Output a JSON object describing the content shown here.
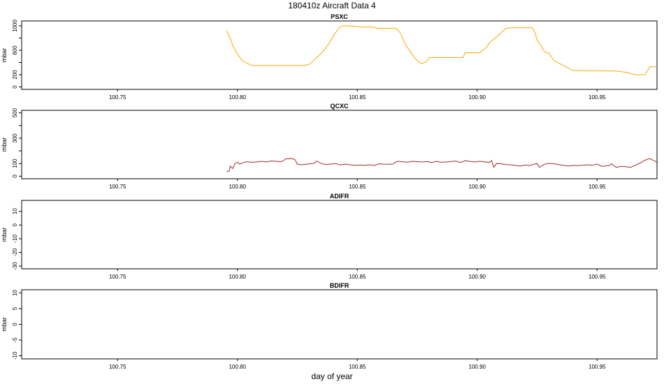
{
  "title": "180410z   Aircraft Data 4",
  "xlabel": "day of year",
  "colors": {
    "psxc": "#ffa500",
    "qcxc": "#a52a2a",
    "axis": "#000000"
  },
  "chart_data": [
    {
      "type": "line",
      "title": "PSXC",
      "ylabel": "mbar",
      "xlim": [
        100.71,
        100.975
      ],
      "ylim": [
        -40,
        1080
      ],
      "xticks": [
        "100.75",
        "100.80",
        "100.85",
        "100.90",
        "100.95"
      ],
      "yticks": [
        0,
        200,
        600,
        1000
      ],
      "ytick_labels": [
        "0",
        "200",
        "600",
        "1000"
      ],
      "series": [
        {
          "color": "#ffa500",
          "x": [
            100.7955,
            100.797,
            100.798,
            100.8,
            100.802,
            100.804,
            100.806,
            100.815,
            100.828,
            100.83,
            100.835,
            100.838,
            100.84,
            100.842,
            100.8435,
            100.845,
            100.85,
            100.851,
            100.857,
            100.858,
            100.866,
            100.868,
            100.87,
            100.872,
            100.874,
            100.876,
            100.877,
            100.879,
            100.88,
            100.894,
            100.895,
            100.901,
            100.902,
            100.904,
            100.905,
            100.907,
            100.912,
            100.915,
            100.923,
            100.924,
            100.925,
            100.927,
            100.928,
            100.929,
            100.93,
            100.932,
            100.94,
            100.958,
            100.962,
            100.966,
            100.97,
            100.972,
            100.975
          ],
          "y": [
            920,
            800,
            680,
            540,
            430,
            390,
            350,
            350,
            350,
            370,
            550,
            700,
            830,
            950,
            1000,
            1000,
            990,
            980,
            980,
            960,
            960,
            880,
            700,
            580,
            470,
            400,
            380,
            420,
            480,
            480,
            560,
            560,
            590,
            650,
            720,
            780,
            960,
            970,
            970,
            900,
            770,
            650,
            580,
            560,
            550,
            430,
            270,
            260,
            240,
            200,
            200,
            330,
            330
          ]
        }
      ]
    },
    {
      "type": "line",
      "title": "QCXC",
      "ylabel": "mbar",
      "xlim": [
        100.71,
        100.975
      ],
      "ylim": [
        -20,
        520
      ],
      "xticks": [
        "100.75",
        "100.80",
        "100.85",
        "100.90",
        "100.95"
      ],
      "yticks": [
        0,
        100,
        300,
        500
      ],
      "ytick_labels": [
        "0",
        "100",
        "300",
        "500"
      ],
      "series": [
        {
          "color": "#a52a2a",
          "x": [
            100.7955,
            100.7965,
            100.797,
            100.798,
            100.799,
            100.8,
            100.801,
            100.802,
            100.804,
            100.806,
            100.808,
            100.81,
            100.812,
            100.814,
            100.816,
            100.818,
            100.819,
            100.82,
            100.822,
            100.823,
            100.824,
            100.825,
            100.827,
            100.828,
            100.83,
            100.832,
            100.833,
            100.835,
            100.837,
            100.839,
            100.841,
            100.843,
            100.845,
            100.847,
            100.849,
            100.851,
            100.853,
            100.855,
            100.857,
            100.859,
            100.861,
            100.863,
            100.865,
            100.866,
            100.867,
            100.869,
            100.871,
            100.873,
            100.875,
            100.877,
            100.879,
            100.881,
            100.883,
            100.885,
            100.887,
            100.889,
            100.891,
            100.893,
            100.895,
            100.897,
            100.899,
            100.901,
            100.903,
            100.905,
            100.906,
            100.907,
            100.908,
            100.91,
            100.912,
            100.914,
            100.916,
            100.918,
            100.92,
            100.922,
            100.924,
            100.925,
            100.926,
            100.928,
            100.93,
            100.932,
            100.934,
            100.936,
            100.938,
            100.94,
            100.942,
            100.944,
            100.946,
            100.948,
            100.95,
            100.952,
            100.954,
            100.955,
            100.956,
            100.958,
            100.96,
            100.962,
            100.964,
            100.966,
            100.968,
            100.97,
            100.972,
            100.973,
            100.975
          ],
          "y": [
            35,
            40,
            80,
            60,
            100,
            110,
            95,
            105,
            115,
            110,
            112,
            118,
            112,
            120,
            118,
            115,
            120,
            135,
            140,
            138,
            130,
            95,
            90,
            93,
            98,
            102,
            120,
            100,
            92,
            96,
            100,
            89,
            95,
            90,
            85,
            88,
            85,
            90,
            84,
            98,
            95,
            94,
            96,
            112,
            118,
            114,
            110,
            118,
            115,
            112,
            116,
            108,
            118,
            110,
            112,
            115,
            120,
            108,
            122,
            116,
            112,
            118,
            114,
            108,
            123,
            70,
            100,
            98,
            92,
            90,
            85,
            80,
            88,
            84,
            96,
            100,
            70,
            94,
            102,
            98,
            92,
            86,
            80,
            85,
            84,
            86,
            90,
            86,
            96,
            78,
            82,
            84,
            98,
            70,
            78,
            75,
            70,
            88,
            104,
            126,
            140,
            130,
            110
          ]
        }
      ]
    },
    {
      "type": "line",
      "title": "ADIFR",
      "ylabel": "mbar",
      "xlim": [
        100.71,
        100.975
      ],
      "ylim": [
        -32,
        18
      ],
      "xticks": [
        "100.75",
        "100.80",
        "100.85",
        "100.90",
        "100.95"
      ],
      "yticks": [
        10,
        0,
        -10,
        -20,
        -30
      ],
      "ytick_labels": [
        "10",
        "0",
        "-10",
        "-20",
        "-30"
      ],
      "series": []
    },
    {
      "type": "line",
      "title": "BDIFR",
      "ylabel": "mbar",
      "xlim": [
        100.71,
        100.975
      ],
      "ylim": [
        -11,
        11
      ],
      "xticks": [
        "100.75",
        "100.80",
        "100.85",
        "100.90",
        "100.95"
      ],
      "yticks": [
        10,
        5,
        0,
        -5,
        -10
      ],
      "ytick_labels": [
        "10",
        "5",
        "0",
        "-5",
        "-10"
      ],
      "series": []
    }
  ]
}
